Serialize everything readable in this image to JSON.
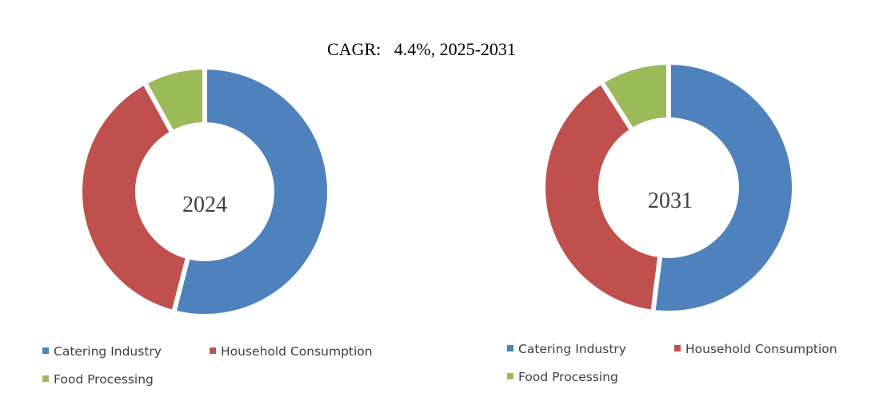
{
  "title": "CAGR:   4.4%, 2025-2031",
  "colors": {
    "catering": "#4F81BD",
    "household": "#C0504D",
    "food": "#9BBB59"
  },
  "chart_data": [
    {
      "type": "pie",
      "subtype": "donut",
      "center_label": "2024",
      "categories": [
        "Catering Industry",
        "Household Consumption",
        "Food Processing"
      ],
      "values": [
        54,
        38,
        8
      ],
      "legend": [
        "Catering Industry",
        "Household Consumption",
        "Food Processing"
      ]
    },
    {
      "type": "pie",
      "subtype": "donut",
      "center_label": "2031",
      "categories": [
        "Catering Industry",
        "Household Consumption",
        "Food Processing"
      ],
      "values": [
        52,
        39,
        9
      ],
      "legend": [
        "Catering Industry",
        "Household Consumption",
        "Food Processing"
      ]
    }
  ]
}
